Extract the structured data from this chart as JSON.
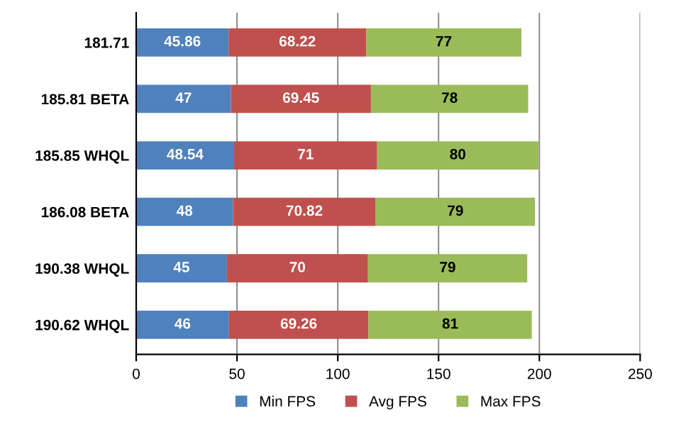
{
  "chart_data": {
    "type": "bar",
    "orientation": "horizontal",
    "stacked": true,
    "categories": [
      "181.71",
      "185.81 BETA",
      "185.85 WHQL",
      "186.08 BETA",
      "190.38 WHQL",
      "190.62 WHQL"
    ],
    "series": [
      {
        "name": "Min FPS",
        "color": "#4f81bd",
        "values": [
          45.86,
          47,
          48.54,
          48,
          45,
          46
        ]
      },
      {
        "name": "Avg FPS",
        "color": "#c0504d",
        "values": [
          68.22,
          69.45,
          71,
          70.82,
          70,
          69.26
        ]
      },
      {
        "name": "Max FPS",
        "color": "#9bbb59",
        "values": [
          77,
          78,
          80,
          79,
          79,
          81
        ]
      }
    ],
    "xlim": [
      0,
      250
    ],
    "xticks": [
      0,
      50,
      100,
      150,
      200,
      250
    ],
    "grid": "x",
    "legend": "bottom",
    "data_labels": true
  }
}
